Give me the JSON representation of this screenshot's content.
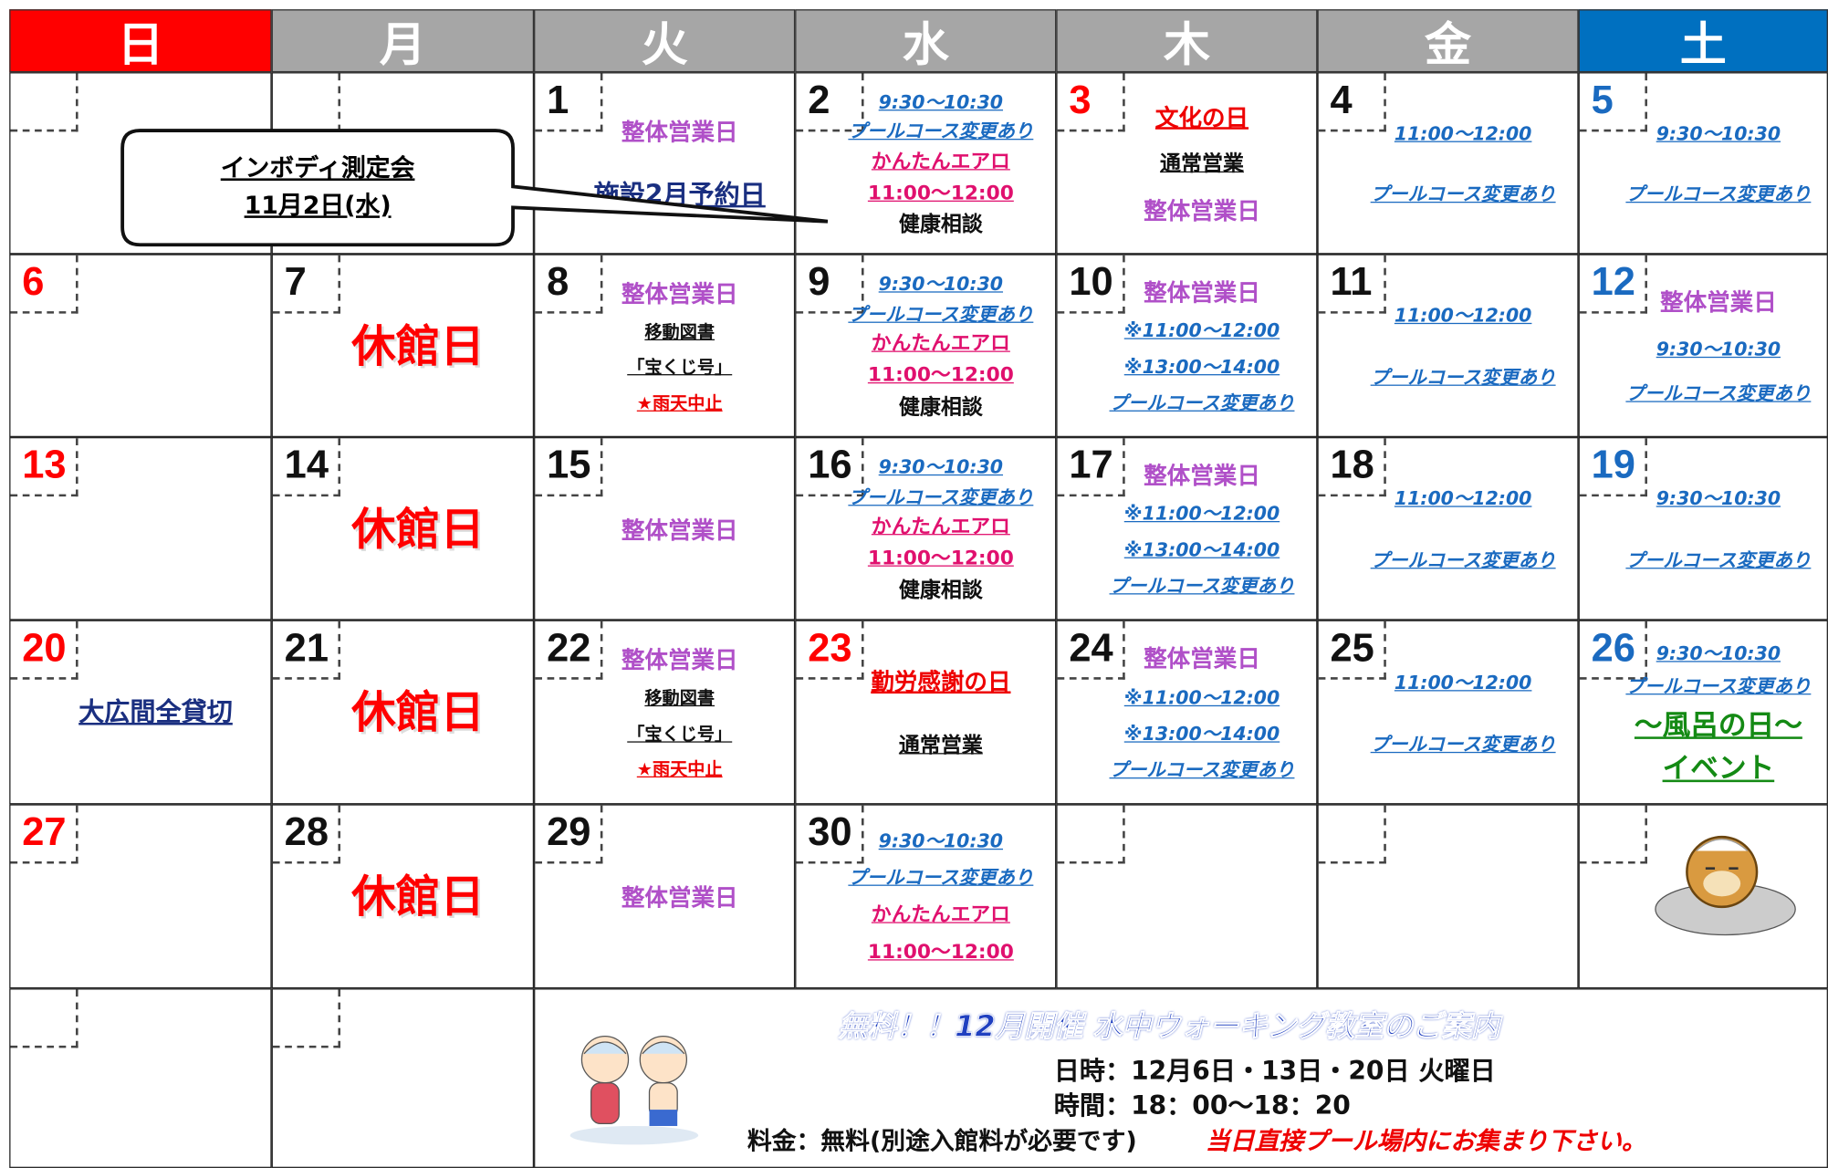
{
  "header": {
    "days": [
      "日",
      "月",
      "火",
      "水",
      "木",
      "金",
      "土"
    ]
  },
  "callout": {
    "lines": [
      "インボディ測定会",
      "11月2日(水)"
    ]
  },
  "weeks": [
    [
      null,
      null,
      {
        "date": "1",
        "events": [
          "整体営業日",
          "施設2月予約日"
        ]
      },
      {
        "date": "2",
        "events": [
          "9:30～10:30",
          "プールコース変更あり",
          "かんたんエアロ",
          "11:00～12:00",
          "健康相談"
        ]
      },
      {
        "date": "3",
        "events": [
          "文化の日",
          "通常営業",
          "整体営業日"
        ]
      },
      {
        "date": "4",
        "events": [
          "11:00～12:00",
          "プールコース変更あり"
        ]
      },
      {
        "date": "5",
        "events": [
          "9:30～10:30",
          "プールコース変更あり"
        ]
      }
    ],
    [
      {
        "date": "6",
        "events": []
      },
      {
        "date": "7",
        "events": [
          "休館日"
        ]
      },
      {
        "date": "8",
        "events": [
          "整体営業日",
          "移動図書",
          "「宝くじ号」",
          "★雨天中止"
        ]
      },
      {
        "date": "9",
        "events": [
          "9:30～10:30",
          "プールコース変更あり",
          "かんたんエアロ",
          "11:00～12:00",
          "健康相談"
        ]
      },
      {
        "date": "10",
        "events": [
          "整体営業日",
          "※11:00～12:00",
          "※13:00～14:00",
          "プールコース変更あり"
        ]
      },
      {
        "date": "11",
        "events": [
          "11:00～12:00",
          "プールコース変更あり"
        ]
      },
      {
        "date": "12",
        "events": [
          "整体営業日",
          "9:30～10:30",
          "プールコース変更あり"
        ]
      }
    ],
    [
      {
        "date": "13",
        "events": []
      },
      {
        "date": "14",
        "events": [
          "休館日"
        ]
      },
      {
        "date": "15",
        "events": [
          "整体営業日"
        ]
      },
      {
        "date": "16",
        "events": [
          "9:30～10:30",
          "プールコース変更あり",
          "かんたんエアロ",
          "11:00～12:00",
          "健康相談"
        ]
      },
      {
        "date": "17",
        "events": [
          "整体営業日",
          "※11:00～12:00",
          "※13:00～14:00",
          "プールコース変更あり"
        ]
      },
      {
        "date": "18",
        "events": [
          "11:00～12:00",
          "プールコース変更あり"
        ]
      },
      {
        "date": "19",
        "events": [
          "9:30～10:30",
          "プールコース変更あり"
        ]
      }
    ],
    [
      {
        "date": "20",
        "events": [
          "大広間全貸切"
        ]
      },
      {
        "date": "21",
        "events": [
          "休館日"
        ]
      },
      {
        "date": "22",
        "events": [
          "整体営業日",
          "移動図書",
          "「宝くじ号」",
          "★雨天中止"
        ]
      },
      {
        "date": "23",
        "events": [
          "勤労感謝の日",
          "通常営業"
        ]
      },
      {
        "date": "24",
        "events": [
          "整体営業日",
          "※11:00～12:00",
          "※13:00～14:00",
          "プールコース変更あり"
        ]
      },
      {
        "date": "25",
        "events": [
          "11:00～12:00",
          "プールコース変更あり"
        ]
      },
      {
        "date": "26",
        "events": [
          "9:30～10:30",
          "プールコース変更あり",
          "～風呂の日～",
          "イベント"
        ]
      }
    ],
    [
      {
        "date": "27",
        "events": []
      },
      {
        "date": "28",
        "events": [
          "休館日"
        ]
      },
      {
        "date": "29",
        "events": [
          "整体営業日"
        ]
      },
      {
        "date": "30",
        "events": [
          "9:30～10:30",
          "プールコース変更あり",
          "かんたんエアロ",
          "11:00～12:00"
        ]
      },
      null,
      null,
      null
    ]
  ],
  "notice": {
    "title": "無料！！12月開催 水中ウォーキング教室のご案内",
    "schedule": "日時：12月6日・13日・20日 火曜日",
    "time": "時間：18：00～18：20",
    "fee": "料金：無料(別途入館料が必要です)",
    "meeting": "当日直接プール場内にお集まり下さい。"
  }
}
